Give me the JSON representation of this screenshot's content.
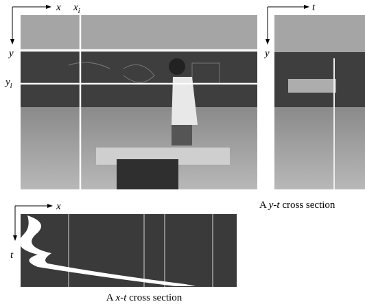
{
  "main_view": {
    "x_axis": "x",
    "x_marker": {
      "base": "x",
      "sub": "i"
    },
    "y_axis": "y",
    "y_marker": {
      "base": "y",
      "sub": "i"
    }
  },
  "yt_section": {
    "t_axis": "t",
    "y_axis": "y",
    "caption": {
      "prefix": "A",
      "axes": "y-t",
      "suffix": "cross section"
    }
  },
  "xt_section": {
    "x_axis": "x",
    "t_axis": "t",
    "caption": {
      "prefix": "A",
      "axes": "x-t",
      "suffix": "cross section"
    }
  }
}
